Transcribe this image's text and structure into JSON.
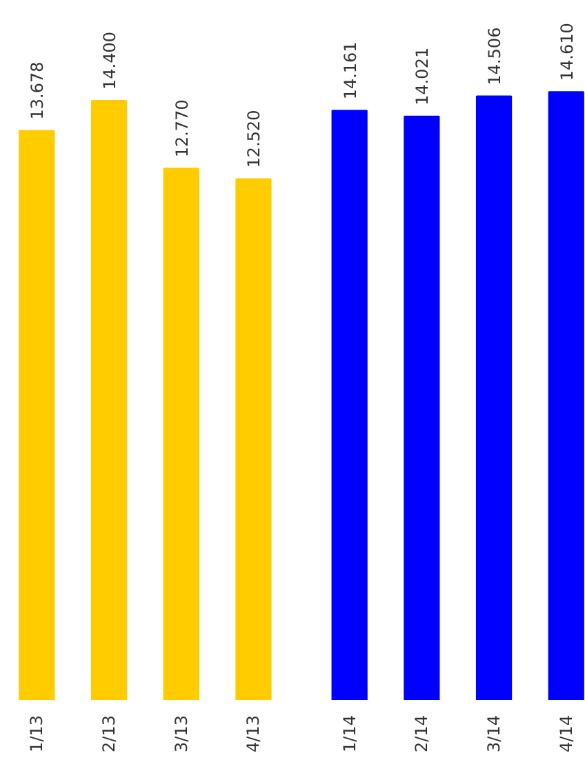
{
  "chart_data": {
    "type": "bar",
    "categories": [
      "1/13",
      "2/13",
      "3/13",
      "4/13",
      "1/14",
      "2/14",
      "3/14",
      "4/14"
    ],
    "values": [
      13.678,
      14.4,
      12.77,
      12.52,
      14.161,
      14.021,
      14.506,
      14.61
    ],
    "value_labels": [
      "13.678",
      "14.400",
      "12.770",
      "12.520",
      "14.161",
      "14.021",
      "14.506",
      "14.610"
    ],
    "colors": [
      "#ffcc00",
      "#ffcc00",
      "#ffcc00",
      "#ffcc00",
      "#0000ff",
      "#0000ff",
      "#0000ff",
      "#0000ff"
    ],
    "tick_labels": "x",
    "grid": false
  }
}
